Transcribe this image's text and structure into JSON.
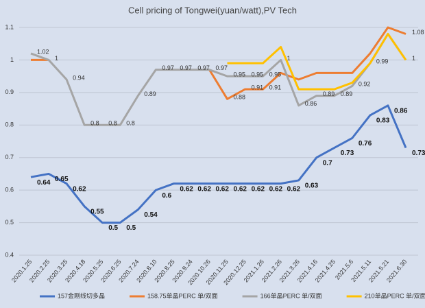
{
  "chart_data": {
    "type": "line",
    "title": "Cell pricing of Tongwei(yuan/watt),PV Tech",
    "categories": [
      "2020.1.25",
      "2020.2.25",
      "2020.3.25",
      "2020.4.18",
      "2020.5.25",
      "2020.6.25",
      "2020.7.24",
      "2020.8.10",
      "2020.8.25",
      "2020.9.24",
      "2020.10.26",
      "2020.11.25",
      "2020.12.25",
      "2021.1.26",
      "2021.2.26",
      "2021.3.26",
      "2021.4.16",
      "2021.4.25",
      "2021.5.6",
      "2021.5.11",
      "2021.5.21",
      "2021.6.30"
    ],
    "series": [
      {
        "name": "157金刚线切多晶",
        "color": "#4472c4",
        "values": [
          0.64,
          0.65,
          0.62,
          0.55,
          0.5,
          0.5,
          0.54,
          0.6,
          0.62,
          0.62,
          0.62,
          0.62,
          0.62,
          0.62,
          0.62,
          0.63,
          0.7,
          0.73,
          0.76,
          0.83,
          0.86,
          0.73
        ],
        "value_labels": [
          "0.64",
          "0.65",
          "0.62",
          "0.55",
          "0.5",
          "0.5",
          "0.54",
          "0.6",
          "0.62",
          "0.62",
          "0.62",
          "0.62",
          "0.62",
          "0.62",
          "0.62",
          "0.63",
          "0.7",
          "0.73",
          "0.76",
          "0.83",
          "0.86",
          "0.73"
        ]
      },
      {
        "name": "158.75单晶PERC 单/双面",
        "color": "#ed7d31",
        "values": [
          1,
          1,
          null,
          null,
          null,
          null,
          null,
          null,
          null,
          null,
          0.97,
          0.88,
          0.91,
          0.91,
          0.96,
          0.94,
          0.96,
          0.96,
          0.96,
          1.02,
          1.1,
          1.08
        ],
        "value_labels": [
          null,
          "1",
          null,
          null,
          null,
          null,
          null,
          null,
          null,
          null,
          null,
          "0.88",
          "0.91",
          "0.91",
          null,
          null,
          null,
          null,
          null,
          null,
          null,
          "1.08"
        ]
      },
      {
        "name": "166单晶PERC 单/双面",
        "color": "#a5a5a5",
        "values": [
          1.02,
          1,
          0.94,
          0.8,
          0.8,
          0.8,
          0.89,
          0.97,
          0.97,
          0.97,
          0.97,
          0.95,
          0.95,
          0.95,
          1,
          0.86,
          0.89,
          0.89,
          0.92,
          0.99,
          1.08,
          1
        ],
        "value_labels": [
          "1.02",
          null,
          "0.94",
          "0.8",
          "0.8",
          "0.8",
          "0.89",
          "0.97",
          "0.97",
          "0.97",
          "0.97",
          "0.95",
          "0.95",
          "0.95",
          "1",
          "0.86",
          "0.89",
          "0.89",
          "0.92",
          null,
          null,
          null
        ]
      },
      {
        "name": "210单晶PERC 单/双面",
        "color": "#ffc000",
        "values": [
          null,
          null,
          null,
          null,
          null,
          null,
          null,
          null,
          null,
          null,
          null,
          0.99,
          0.99,
          0.99,
          1.04,
          0.91,
          0.91,
          0.91,
          0.93,
          0.99,
          1.08,
          1
        ],
        "value_labels": [
          null,
          null,
          null,
          null,
          null,
          null,
          null,
          null,
          null,
          null,
          null,
          null,
          null,
          null,
          null,
          null,
          null,
          null,
          null,
          "0.99",
          null,
          "1"
        ]
      }
    ],
    "ylim": [
      0.4,
      1.1
    ],
    "yticks": [
      0.4,
      0.5,
      0.6,
      0.7,
      0.8,
      0.9,
      1,
      1.1
    ],
    "grid": true,
    "legend": "bottom"
  }
}
